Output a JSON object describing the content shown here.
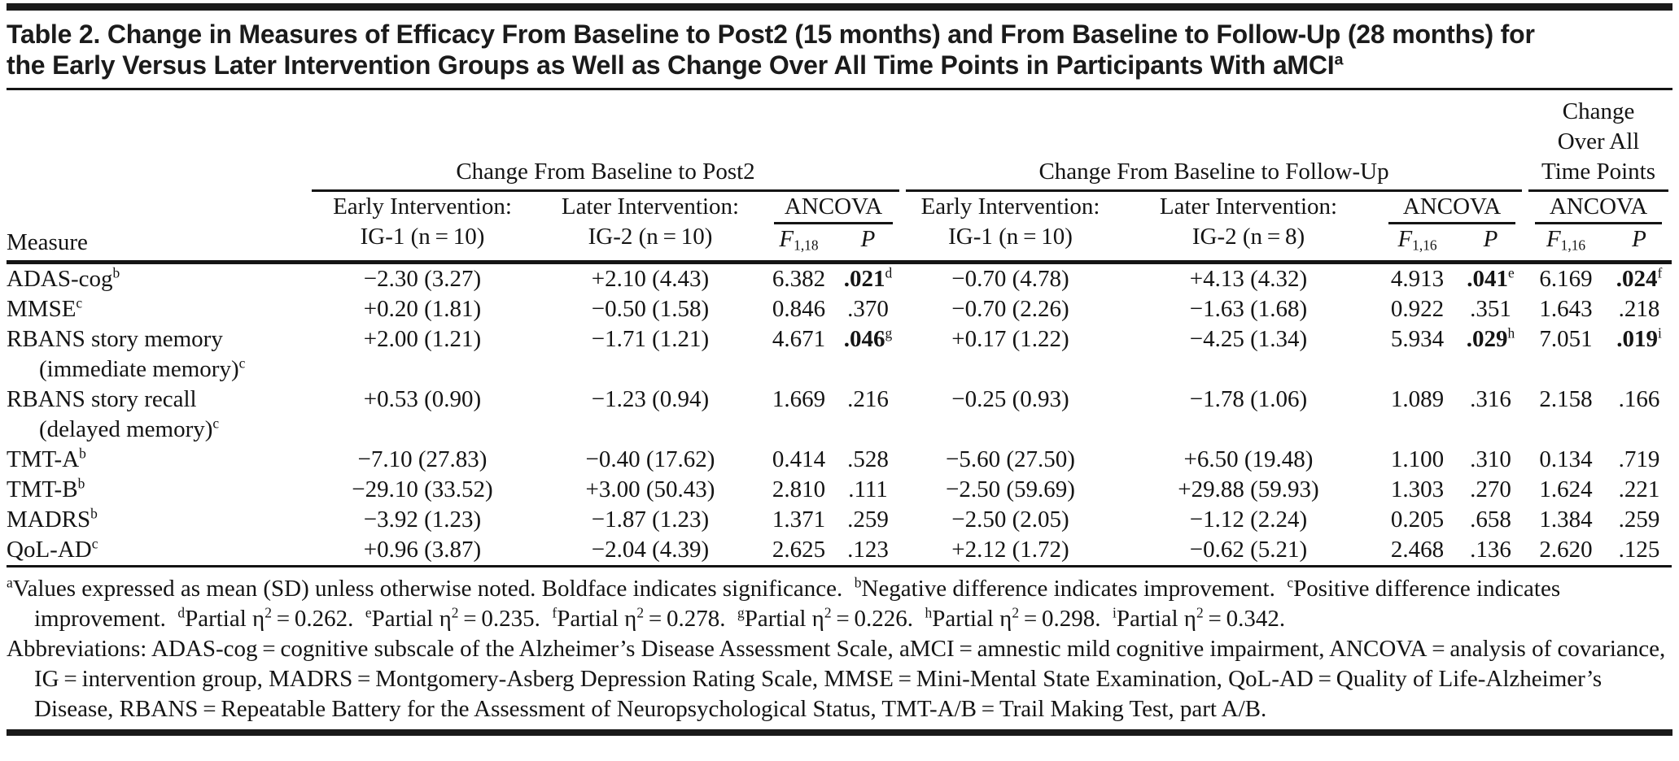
{
  "colors": {
    "background": "#ffffff",
    "text": "#141414",
    "rule": "#141414",
    "top_bar": "#1a1a1a"
  },
  "title": {
    "line1": "Table 2. Change in Measures of Efficacy From Baseline to Post2 (15 months) and From Baseline to Follow-Up (28 months) for",
    "line2": "the Early Versus Later Intervention Groups as Well as Change Over All Time Points in Participants With aMCI",
    "sup": "a"
  },
  "table": {
    "measure_header": "Measure",
    "groups": {
      "post2": {
        "title": "Change From Baseline to Post2",
        "early1": "Early Intervention:",
        "early2": "IG-1 (n = 10)",
        "later1": "Later Intervention:",
        "later2": "IG-2 (n = 10)",
        "ancova": "ANCOVA",
        "f": "F",
        "fsub": "1,18",
        "p": "P"
      },
      "followup": {
        "title": "Change From Baseline to Follow-Up",
        "early1": "Early Intervention:",
        "early2": "IG-1 (n = 10)",
        "later1": "Later Intervention:",
        "later2": "IG-2 (n = 8)",
        "ancova": "ANCOVA",
        "f": "F",
        "fsub": "1,16",
        "p": "P"
      },
      "overall": {
        "title1": "Change",
        "title2": "Over All",
        "title3": "Time Points",
        "ancova": "ANCOVA",
        "f": "F",
        "fsub": "1,16",
        "p": "P"
      }
    },
    "rows": [
      {
        "measure": {
          "line1": "ADAS-cog",
          "sup1": "b",
          "line2": null,
          "sup2": null
        },
        "cells": [
          {
            "v": "−2.30 (3.27)"
          },
          {
            "v": "+2.10 (4.43)"
          },
          {
            "v": "6.382"
          },
          {
            "v": ".021",
            "sup": "d",
            "bold": true
          },
          {
            "v": "−0.70 (4.78)"
          },
          {
            "v": "+4.13 (4.32)"
          },
          {
            "v": "4.913"
          },
          {
            "v": ".041",
            "sup": "e",
            "bold": true
          },
          {
            "v": "6.169"
          },
          {
            "v": ".024",
            "sup": "f",
            "bold": true
          }
        ]
      },
      {
        "measure": {
          "line1": "MMSE",
          "sup1": "c",
          "line2": null,
          "sup2": null
        },
        "cells": [
          {
            "v": "+0.20 (1.81)"
          },
          {
            "v": "−0.50 (1.58)"
          },
          {
            "v": "0.846"
          },
          {
            "v": ".370"
          },
          {
            "v": "−0.70 (2.26)"
          },
          {
            "v": "−1.63 (1.68)"
          },
          {
            "v": "0.922"
          },
          {
            "v": ".351"
          },
          {
            "v": "1.643"
          },
          {
            "v": ".218"
          }
        ]
      },
      {
        "measure": {
          "line1": "RBANS story memory",
          "sup1": null,
          "line2": "(immediate memory)",
          "sup2": "c"
        },
        "cells": [
          {
            "v": "+2.00 (1.21)"
          },
          {
            "v": "−1.71 (1.21)"
          },
          {
            "v": "4.671"
          },
          {
            "v": ".046",
            "sup": "g",
            "bold": true
          },
          {
            "v": "+0.17 (1.22)"
          },
          {
            "v": "−4.25 (1.34)"
          },
          {
            "v": "5.934"
          },
          {
            "v": ".029",
            "sup": "h",
            "bold": true
          },
          {
            "v": "7.051"
          },
          {
            "v": ".019",
            "sup": "i",
            "bold": true
          }
        ]
      },
      {
        "measure": {
          "line1": "RBANS story recall",
          "sup1": null,
          "line2": "(delayed memory)",
          "sup2": "c"
        },
        "cells": [
          {
            "v": "+0.53 (0.90)"
          },
          {
            "v": "−1.23 (0.94)"
          },
          {
            "v": "1.669"
          },
          {
            "v": ".216"
          },
          {
            "v": "−0.25 (0.93)"
          },
          {
            "v": "−1.78 (1.06)"
          },
          {
            "v": "1.089"
          },
          {
            "v": ".316"
          },
          {
            "v": "2.158"
          },
          {
            "v": ".166"
          }
        ]
      },
      {
        "measure": {
          "line1": "TMT-A",
          "sup1": "b",
          "line2": null,
          "sup2": null
        },
        "cells": [
          {
            "v": "−7.10 (27.83)"
          },
          {
            "v": "−0.40 (17.62)"
          },
          {
            "v": "0.414"
          },
          {
            "v": ".528"
          },
          {
            "v": "−5.60 (27.50)"
          },
          {
            "v": "+6.50 (19.48)"
          },
          {
            "v": "1.100"
          },
          {
            "v": ".310"
          },
          {
            "v": "0.134"
          },
          {
            "v": ".719"
          }
        ]
      },
      {
        "measure": {
          "line1": "TMT-B",
          "sup1": "b",
          "line2": null,
          "sup2": null
        },
        "cells": [
          {
            "v": "−29.10 (33.52)"
          },
          {
            "v": "+3.00 (50.43)"
          },
          {
            "v": "2.810"
          },
          {
            "v": ".111"
          },
          {
            "v": "−2.50 (59.69)"
          },
          {
            "v": "+29.88 (59.93)"
          },
          {
            "v": "1.303"
          },
          {
            "v": ".270"
          },
          {
            "v": "1.624"
          },
          {
            "v": ".221"
          }
        ]
      },
      {
        "measure": {
          "line1": "MADRS",
          "sup1": "b",
          "line2": null,
          "sup2": null
        },
        "cells": [
          {
            "v": "−3.92 (1.23)"
          },
          {
            "v": "−1.87 (1.23)"
          },
          {
            "v": "1.371"
          },
          {
            "v": ".259"
          },
          {
            "v": "−2.50 (2.05)"
          },
          {
            "v": "−1.12 (2.24)"
          },
          {
            "v": "0.205"
          },
          {
            "v": ".658"
          },
          {
            "v": "1.384"
          },
          {
            "v": ".259"
          }
        ]
      },
      {
        "measure": {
          "line1": "QoL-AD",
          "sup1": "c",
          "line2": null,
          "sup2": null
        },
        "cells": [
          {
            "v": "+0.96 (3.87)"
          },
          {
            "v": "−2.04 (4.39)"
          },
          {
            "v": "2.625"
          },
          {
            "v": ".123"
          },
          {
            "v": "+2.12 (1.72)"
          },
          {
            "v": "−0.62 (5.21)"
          },
          {
            "v": "2.468"
          },
          {
            "v": ".136"
          },
          {
            "v": "2.620"
          },
          {
            "v": ".125"
          }
        ]
      }
    ]
  },
  "footnotes": [
    [
      {
        "sup": "a"
      },
      {
        "t": "Values expressed as mean (SD) unless otherwise noted. Boldface indicates significance. "
      },
      {
        "sup": "b"
      },
      {
        "t": "Negative difference indicates improvement. "
      },
      {
        "sup": "c"
      },
      {
        "t": "Positive difference indicates improvement. "
      },
      {
        "sup": "d"
      },
      {
        "t": "Partial η"
      },
      {
        "sup": "2"
      },
      {
        "t": " = 0.262. "
      },
      {
        "sup": "e"
      },
      {
        "t": "Partial η"
      },
      {
        "sup": "2"
      },
      {
        "t": " = 0.235. "
      },
      {
        "sup": "f"
      },
      {
        "t": "Partial η"
      },
      {
        "sup": "2"
      },
      {
        "t": " = 0.278. "
      },
      {
        "sup": "g"
      },
      {
        "t": "Partial η"
      },
      {
        "sup": "2"
      },
      {
        "t": " = 0.226. "
      },
      {
        "sup": "h"
      },
      {
        "t": "Partial η"
      },
      {
        "sup": "2"
      },
      {
        "t": " = 0.298. "
      },
      {
        "sup": "i"
      },
      {
        "t": "Partial η"
      },
      {
        "sup": "2"
      },
      {
        "t": " = 0.342."
      }
    ],
    [
      {
        "t": "Abbreviations: ADAS-cog = cognitive subscale of the Alzheimer’s Disease Assessment Scale, aMCI = amnestic mild cognitive impairment, ANCOVA = analysis of covariance, IG = intervention group, MADRS = Montgomery-Asberg Depression Rating Scale, MMSE = Mini-Mental State Examination, QoL-AD = Quality of Life-Alzheimer’s Disease, RBANS = Repeatable Battery for the Assessment of Neuropsychological Status, TMT-A/B = Trail Making Test, part A/B."
      }
    ]
  ]
}
